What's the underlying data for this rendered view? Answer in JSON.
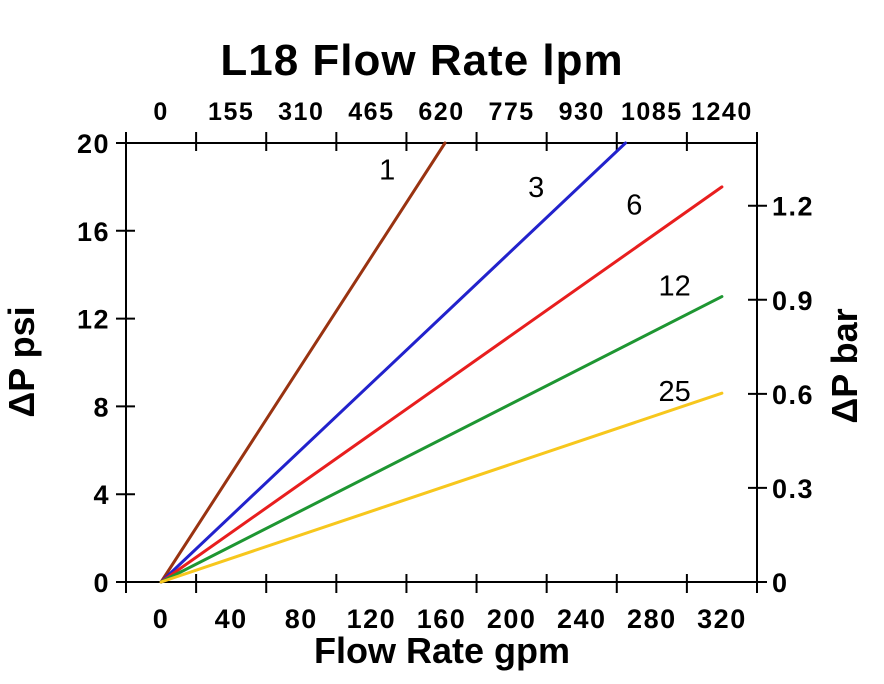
{
  "title": "L18 Flow Rate lpm",
  "axis_titles": {
    "top": "L18 Flow Rate lpm",
    "bottom": "Flow Rate gpm",
    "left": "ΔP psi",
    "right": "ΔP bar"
  },
  "chart_data": {
    "type": "line",
    "title": "L18 Flow Rate lpm",
    "xlabel": "Flow Rate gpm",
    "x2label": "L18 Flow Rate lpm",
    "ylabel": "ΔP psi",
    "y2label": "ΔP bar",
    "xlim": [
      0,
      320
    ],
    "ylim": [
      0,
      20
    ],
    "y2lim": [
      0,
      1.4
    ],
    "grid": false,
    "legend": "none",
    "background": "#FFFFFF",
    "axis_color": "#000000",
    "x_ticks": [
      0,
      40,
      80,
      120,
      160,
      200,
      240,
      280,
      320
    ],
    "x2_ticks": [
      0,
      155,
      310,
      465,
      620,
      775,
      930,
      1085,
      1240
    ],
    "y_ticks": [
      0,
      4,
      8,
      12,
      16,
      20
    ],
    "y2_ticks": [
      0,
      0.3,
      0.6,
      0.9,
      1.2
    ],
    "series": [
      {
        "name": "1",
        "color": "#993311",
        "points": [
          [
            0,
            0
          ],
          [
            162,
            20
          ]
        ],
        "label": {
          "text": "1",
          "x": 129,
          "y": 18.8
        }
      },
      {
        "name": "3",
        "color": "#2222CC",
        "points": [
          [
            0,
            0
          ],
          [
            265,
            20
          ]
        ],
        "label": {
          "text": "3",
          "x": 214,
          "y": 18.0
        }
      },
      {
        "name": "6",
        "color": "#E81E1E",
        "points": [
          [
            0,
            0
          ],
          [
            320,
            18
          ]
        ],
        "label": {
          "text": "6",
          "x": 270,
          "y": 17.2
        }
      },
      {
        "name": "12",
        "color": "#1E9632",
        "points": [
          [
            0,
            0
          ],
          [
            320,
            13
          ]
        ],
        "label": {
          "text": "12",
          "x": 293,
          "y": 13.5
        }
      },
      {
        "name": "25",
        "color": "#F7C71D",
        "points": [
          [
            0,
            0
          ],
          [
            320,
            8.6
          ]
        ],
        "label": {
          "text": "25",
          "x": 293,
          "y": 8.7
        }
      }
    ]
  }
}
